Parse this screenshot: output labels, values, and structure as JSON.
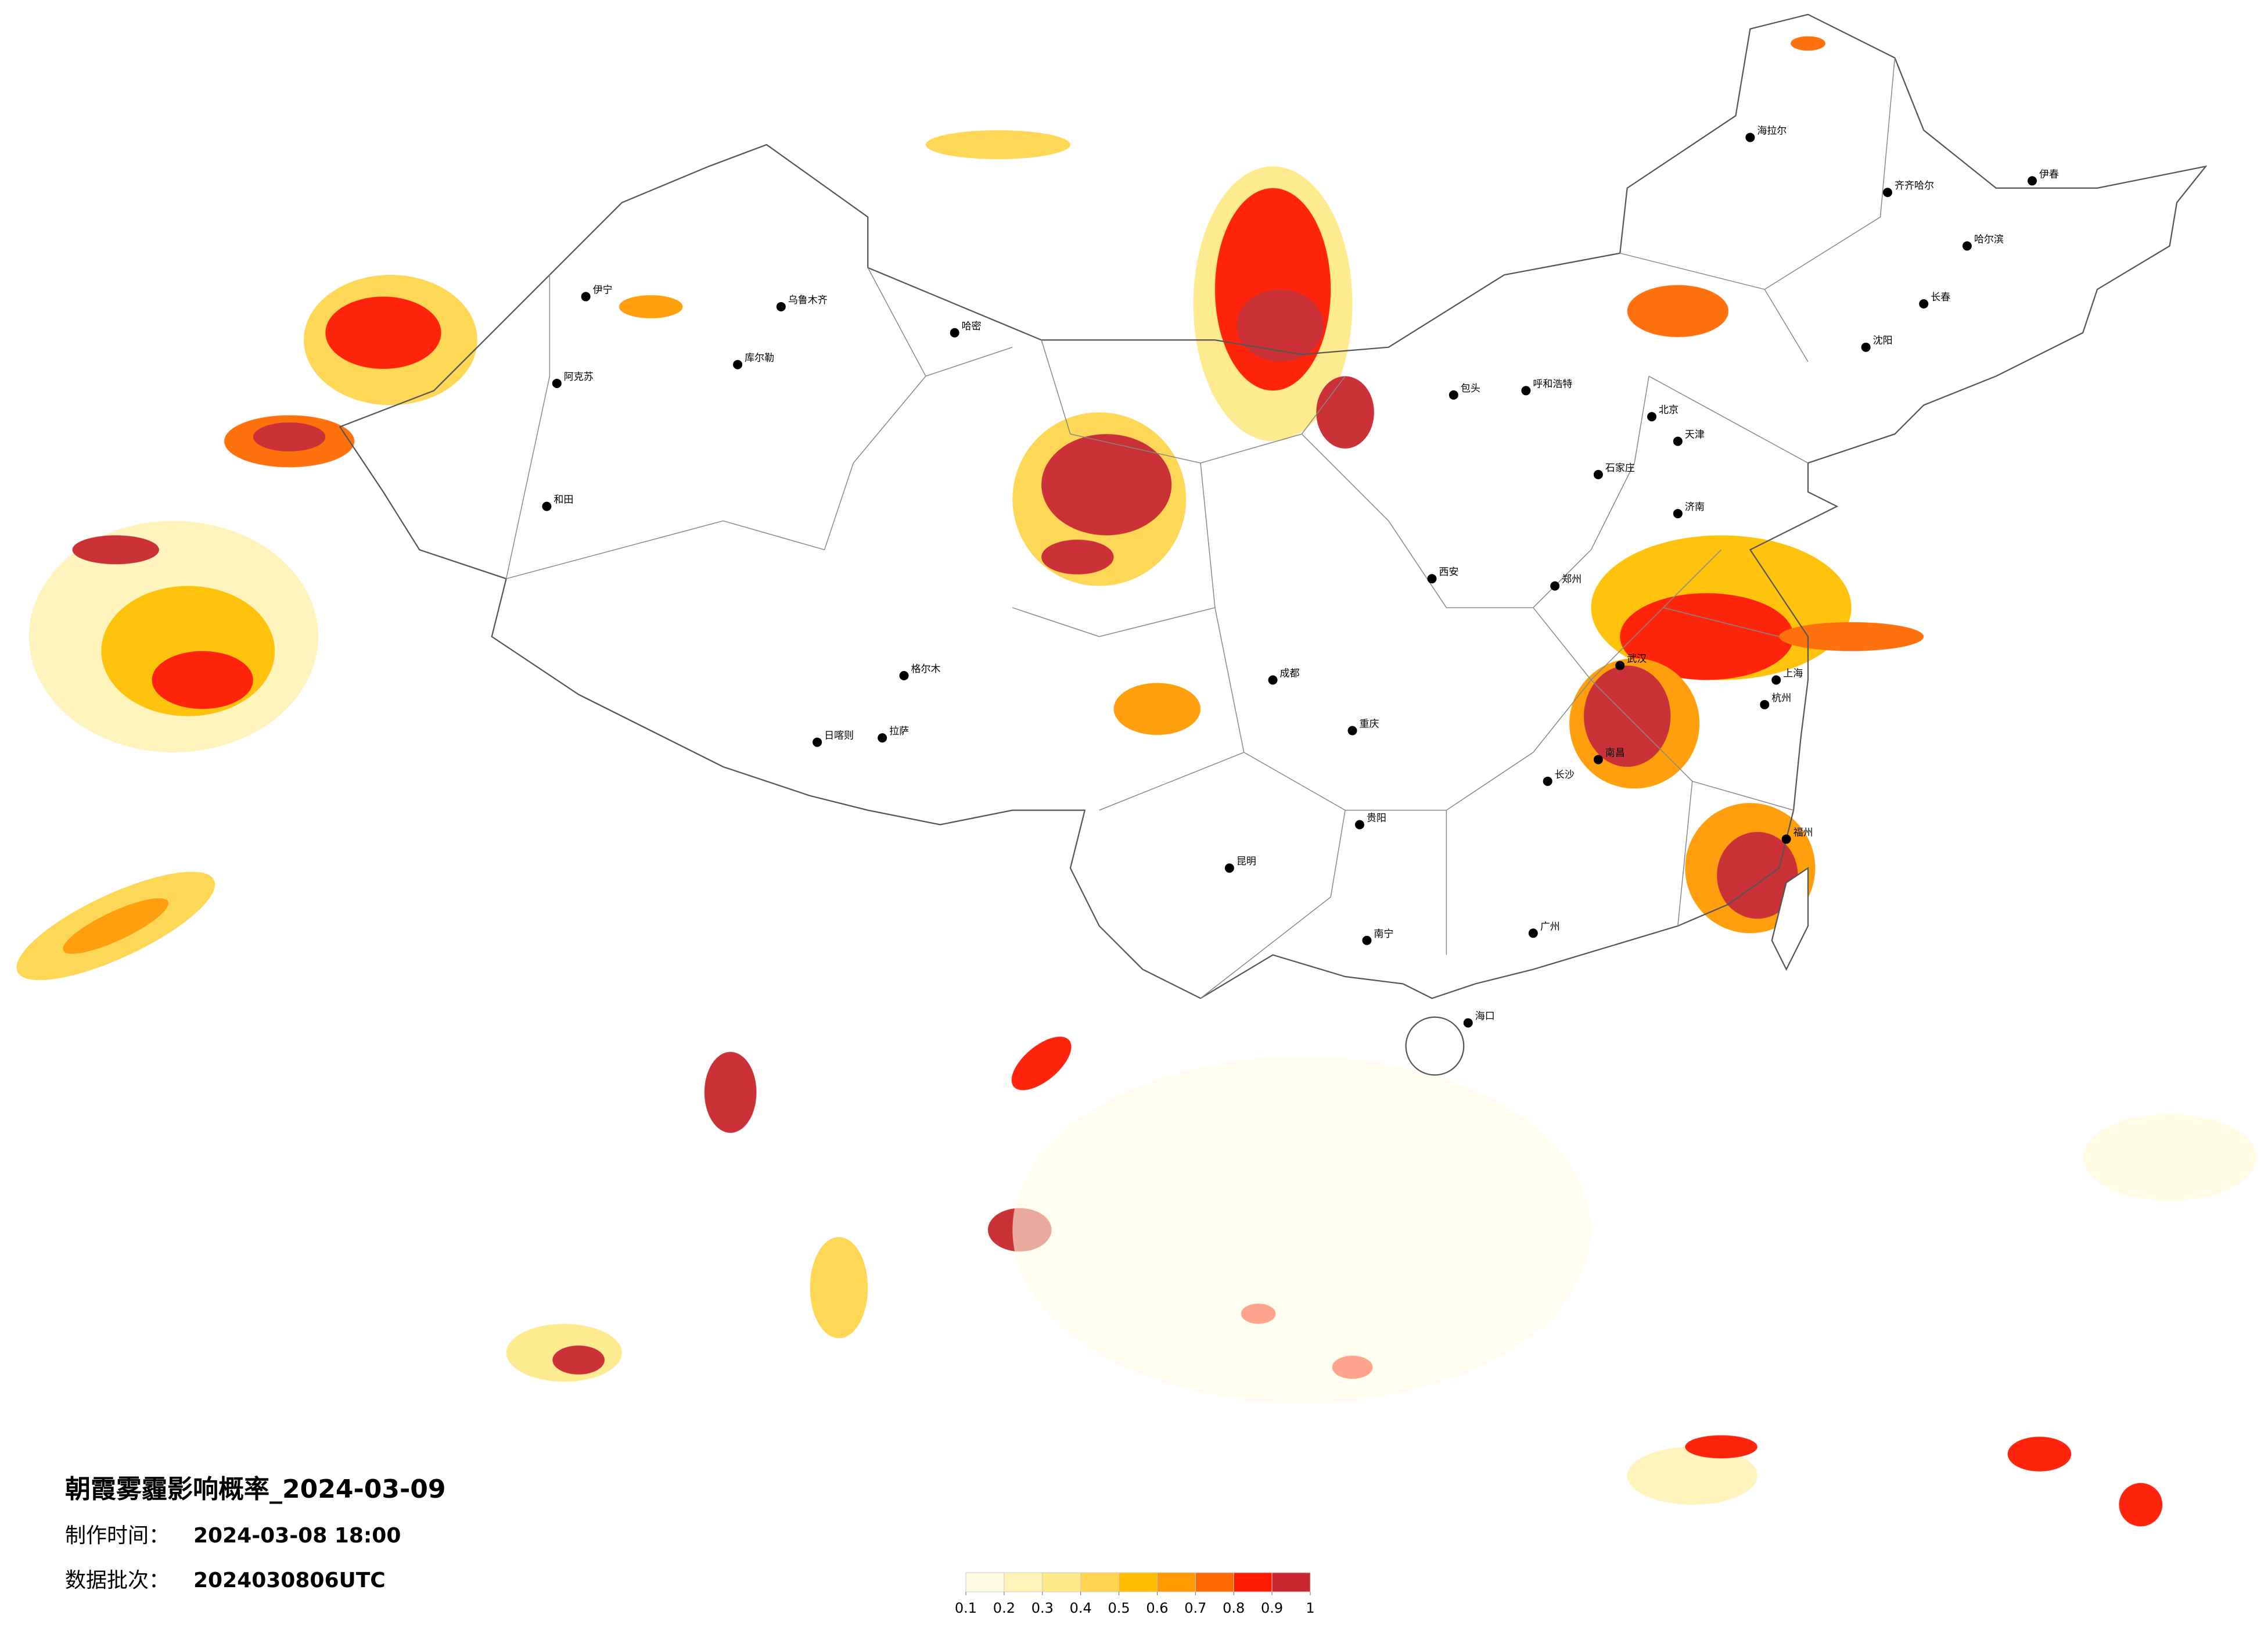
{
  "title": "朝霞雾霾影响概率_2024-03-09",
  "production_time": {
    "label": "制作时间：",
    "value": "2024-03-08 18:00"
  },
  "data_batch": {
    "label": "数据批次：",
    "value": "2024030806UTC"
  },
  "colorbar": {
    "ticks": [
      0.1,
      0.2,
      0.3,
      0.4,
      0.5,
      0.6,
      0.7,
      0.8,
      0.9,
      1
    ],
    "colors": [
      "#fffbe3",
      "#fff4b8",
      "#ffea8a",
      "#ffd54f",
      "#ffbf00",
      "#ff9a00",
      "#ff6a00",
      "#ff1a00",
      "#c8282e"
    ]
  },
  "cities": [
    "伊宁",
    "阿克苏",
    "和田",
    "库尔勒",
    "乌鲁木齐",
    "哈密",
    "格尔木",
    "日喀则",
    "拉萨",
    "呼和浩特",
    "包头",
    "北京",
    "天津",
    "石家庄",
    "济南",
    "郑州",
    "西安",
    "成都",
    "重庆",
    "贵阳",
    "昆明",
    "南宁",
    "广州",
    "海口",
    "长沙",
    "武汉",
    "南昌",
    "杭州",
    "上海",
    "福州",
    "沈阳",
    "长春",
    "哈尔滨",
    "齐齐哈尔",
    "海拉尔",
    "伊春"
  ]
}
